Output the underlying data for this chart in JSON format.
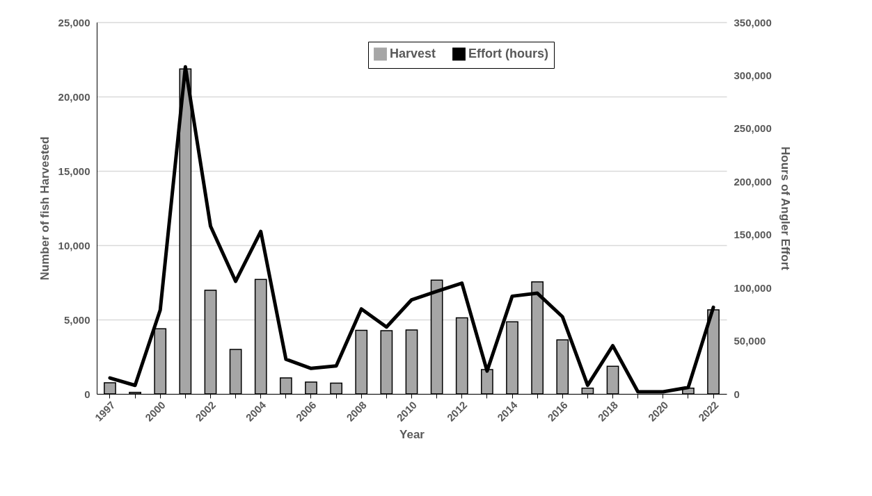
{
  "chart_data": {
    "type": "bar",
    "xlabel": "Year",
    "ylabel": "Number of fish Harvested",
    "y2label": "Hours of Angler Effort",
    "categories": [
      "1997",
      null,
      "2000",
      null,
      "2002",
      null,
      "2004",
      null,
      "2006",
      null,
      "2008",
      null,
      "2010",
      null,
      "2012",
      null,
      "2014",
      null,
      "2016",
      null,
      "2018",
      null,
      "2020",
      null,
      "2022"
    ],
    "series": [
      {
        "name": "Harvest",
        "color": "#a6a6a6",
        "values": [
          750,
          100,
          4380,
          21860,
          6980,
          2990,
          7700,
          1080,
          790,
          720,
          4280,
          4250,
          4300,
          7650,
          5120,
          1630,
          4850,
          7540,
          3630,
          380,
          1860,
          null,
          null,
          380,
          5650
        ]
      },
      {
        "name": "Effort (hours)",
        "type": "line",
        "axis": "y2",
        "color": "#000000",
        "values": [
          15000,
          8000,
          79000,
          308000,
          158000,
          106000,
          153000,
          32600,
          24000,
          26300,
          80000,
          63000,
          88600,
          96500,
          104300,
          21500,
          92000,
          94800,
          72600,
          8100,
          45400,
          2000,
          2000,
          6000,
          81500
        ]
      }
    ],
    "ylim": [
      0,
      25000
    ],
    "yticks": [
      0,
      {
        "value": 5000,
        "label": "5,000"
      },
      {
        "value": 10000,
        "label": "10,000"
      },
      {
        "value": 15000,
        "label": "15,000"
      },
      {
        "value": 20000,
        "label": "20,000"
      },
      {
        "value": 25000,
        "label": "25,000"
      }
    ],
    "y2lim": [
      0,
      350000
    ],
    "y2ticks": [
      0,
      {
        "value": 50000,
        "label": "50,000"
      },
      {
        "value": 100000,
        "label": "100,000"
      },
      {
        "value": 150000,
        "label": "150,000"
      },
      {
        "value": 200000,
        "label": "200,000"
      },
      {
        "value": 250000,
        "label": "250,000"
      },
      {
        "value": 300000,
        "label": "300,000"
      },
      {
        "value": 350000,
        "label": "350,000"
      }
    ],
    "grid": "y",
    "legend": "top"
  }
}
